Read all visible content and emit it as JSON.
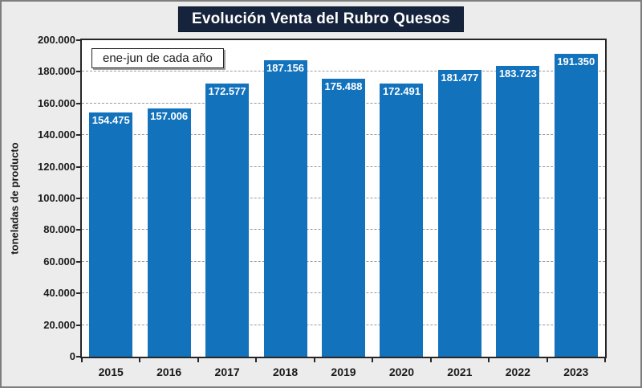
{
  "chart_data": {
    "type": "bar",
    "title": "Evolución Venta del Rubro Quesos",
    "annotation": "ene-jun de cada año",
    "ylabel": "toneladas de producto",
    "xlabel": "",
    "categories": [
      "2015",
      "2016",
      "2017",
      "2018",
      "2019",
      "2020",
      "2021",
      "2022",
      "2023"
    ],
    "values": [
      154475,
      157006,
      172577,
      187156,
      175488,
      172491,
      181477,
      183723,
      191350
    ],
    "value_labels": [
      "154.475",
      "157.006",
      "172.577",
      "187.156",
      "175.488",
      "172.491",
      "181.477",
      "183.723",
      "191.350"
    ],
    "ylim": [
      0,
      200000
    ],
    "ytick_step": 20000,
    "ytick_values": [
      0,
      20000,
      40000,
      60000,
      80000,
      100000,
      120000,
      140000,
      160000,
      180000,
      200000
    ],
    "ytick_labels": [
      "0",
      "20.000",
      "40.000",
      "60.000",
      "80.000",
      "100.000",
      "120.000",
      "140.000",
      "160.000",
      "180.000",
      "200.000"
    ],
    "grid": "horizontal-dashed",
    "legend": "none",
    "colors": {
      "bar": "#1272BC",
      "title_bg": "#15233C",
      "title_text": "#FFFFFF",
      "background": "#ECECEC",
      "plot_bg": "#FFFFFF",
      "gridline": "#9B9B9B",
      "axis_text": "#1A1A1A",
      "value_label_text": "#FFFFFF"
    }
  }
}
